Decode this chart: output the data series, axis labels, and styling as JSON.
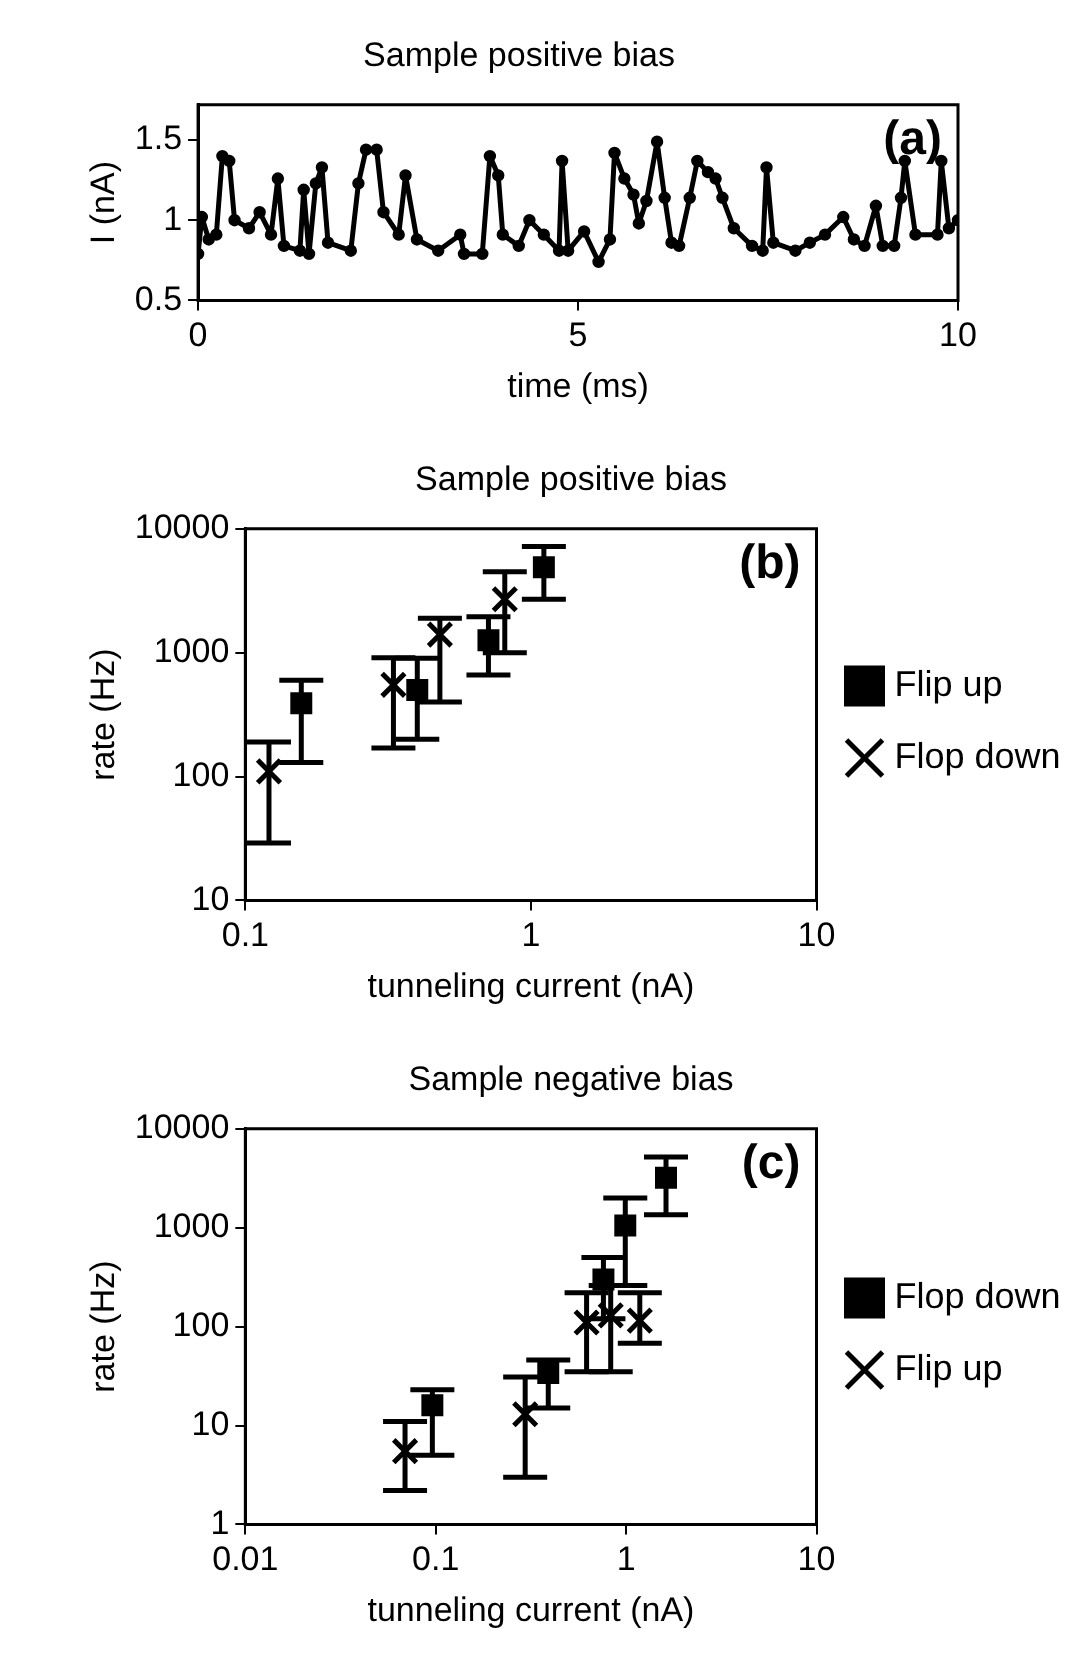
{
  "chart_data": [
    {
      "type": "line",
      "title": "Sample positive bias",
      "xlabel": "time (ms)",
      "ylabel": "I (nA)",
      "annotations": [
        "(a)"
      ],
      "marker": "circle",
      "line_style": "solid",
      "legend": false,
      "grid": false,
      "xlim": [
        0,
        10
      ],
      "xticks": [
        0,
        5,
        10
      ],
      "ylim": [
        0.5,
        1.72
      ],
      "yticks": [
        0.5,
        1,
        1.5
      ],
      "x": [
        0,
        0.05,
        0.14,
        0.24,
        0.32,
        0.41,
        0.48,
        0.67,
        0.81,
        0.96,
        1.05,
        1.13,
        1.34,
        1.39,
        1.46,
        1.55,
        1.63,
        1.71,
        2.01,
        2.11,
        2.21,
        2.35,
        2.44,
        2.64,
        2.73,
        2.88,
        3.16,
        3.45,
        3.5,
        3.74,
        3.84,
        3.95,
        4.01,
        4.22,
        4.36,
        4.55,
        4.75,
        4.79,
        4.87,
        5.08,
        5.27,
        5.42,
        5.48,
        5.61,
        5.73,
        5.8,
        5.9,
        6.04,
        6.14,
        6.23,
        6.33,
        6.47,
        6.57,
        6.71,
        6.81,
        6.9,
        7.05,
        7.29,
        7.43,
        7.48,
        7.57,
        7.86,
        8.05,
        8.25,
        8.49,
        8.63,
        8.77,
        8.92,
        9.01,
        9.16,
        9.25,
        9.3,
        9.44,
        9.73,
        9.78,
        9.88,
        10
      ],
      "series": [
        {
          "color": "#000000",
          "values": [
            0.79,
            1.02,
            0.88,
            0.91,
            1.4,
            1.37,
            1.0,
            0.95,
            1.05,
            0.91,
            1.26,
            0.84,
            0.81,
            1.19,
            0.79,
            1.23,
            1.33,
            0.86,
            0.81,
            1.23,
            1.44,
            1.44,
            1.05,
            0.91,
            1.28,
            0.88,
            0.81,
            0.91,
            0.79,
            0.79,
            1.4,
            1.28,
            0.91,
            0.84,
            1.0,
            0.91,
            0.81,
            1.37,
            0.81,
            0.93,
            0.74,
            0.88,
            1.42,
            1.26,
            1.16,
            0.98,
            1.12,
            1.49,
            1.14,
            0.86,
            0.84,
            1.14,
            1.37,
            1.3,
            1.26,
            1.14,
            0.95,
            0.84,
            0.81,
            1.33,
            0.86,
            0.81,
            0.86,
            0.91,
            1.02,
            0.88,
            0.84,
            1.09,
            0.84,
            0.84,
            1.14,
            1.37,
            0.91,
            0.91,
            1.37,
            0.95,
            1.0
          ]
        }
      ]
    },
    {
      "type": "scatter",
      "title": "Sample positive bias",
      "xlabel": "tunneling current (nA)",
      "ylabel": "rate (Hz)",
      "annotations": [
        "(b)"
      ],
      "log": "xy",
      "legend": "right",
      "grid": false,
      "xlim": [
        0.1,
        10
      ],
      "xticks": [
        0.1,
        1,
        10
      ],
      "ylim": [
        10,
        10000
      ],
      "yticks": [
        10,
        100,
        1000,
        10000
      ],
      "series": [
        {
          "name": "Flip up",
          "color": "#000000",
          "marker": "square",
          "x": [
            0.157,
            0.4,
            0.71,
            1.11
          ],
          "values": [
            390,
            500,
            1260,
            4900
          ],
          "errors": [
            [
              130,
              600
            ],
            [
              200,
              900
            ],
            [
              660,
              1950
            ],
            [
              2700,
              7200
            ]
          ]
        },
        {
          "name": "Flop down",
          "color": "#000000",
          "marker": "cross",
          "x": [
            0.121,
            0.33,
            0.48,
            0.81
          ],
          "values": [
            110,
            550,
            1400,
            2700
          ],
          "errors": [
            [
              29,
              190
            ],
            [
              170,
              910
            ],
            [
              400,
              1900
            ],
            [
              1000,
              4500
            ]
          ]
        }
      ]
    },
    {
      "type": "scatter",
      "title": "Sample negative bias",
      "xlabel": "tunneling current (nA)",
      "ylabel": "rate (Hz)",
      "annotations": [
        "(c)"
      ],
      "log": "xy",
      "legend": "right",
      "grid": false,
      "xlim": [
        0.01,
        10
      ],
      "xticks": [
        0.01,
        0.1,
        1,
        10
      ],
      "ylim": [
        1,
        10000
      ],
      "yticks": [
        1,
        10,
        100,
        1000,
        10000
      ],
      "series": [
        {
          "name": "Flop down",
          "color": "#000000",
          "marker": "square",
          "x": [
            0.096,
            0.39,
            0.76,
            0.99,
            1.62
          ],
          "values": [
            16,
            34,
            300,
            1050,
            3200
          ],
          "errors": [
            [
              5,
              23
            ],
            [
              15,
              46
            ],
            [
              120,
              500
            ],
            [
              260,
              2000
            ],
            [
              1350,
              5200
            ]
          ]
        },
        {
          "name": "Flip up",
          "color": "#000000",
          "marker": "cross",
          "x": [
            0.069,
            0.295,
            0.62,
            0.83,
            1.18
          ],
          "values": [
            5.5,
            13,
            110,
            130,
            115
          ],
          "errors": [
            [
              2.2,
              11
            ],
            [
              3,
              31
            ],
            [
              35,
              220
            ],
            [
              35,
              260
            ],
            [
              68,
              220
            ]
          ]
        }
      ]
    }
  ]
}
